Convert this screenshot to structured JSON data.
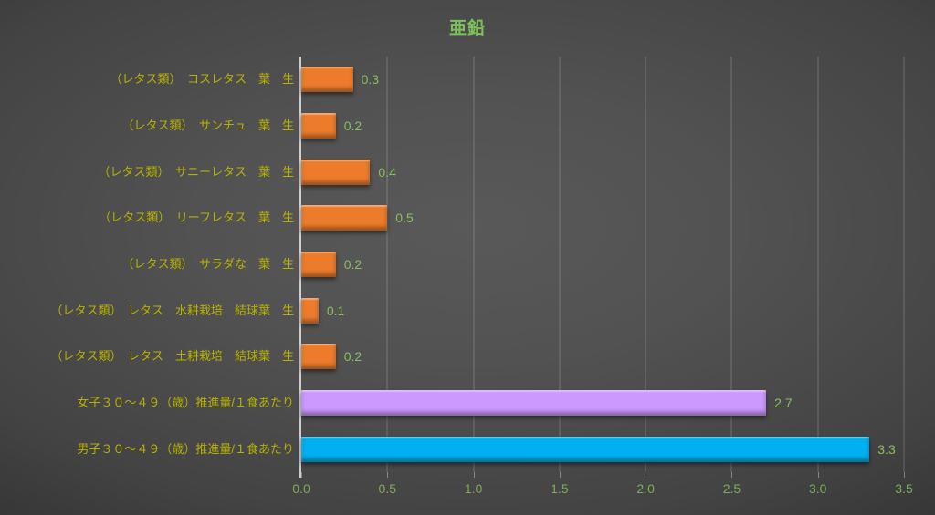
{
  "title": "亜鉛",
  "colors": {
    "title_text": "#7cc15a",
    "category_text": "#b7b200",
    "value_text": "#8cbd60",
    "axis_text": "#79af52",
    "bar_orange": "#ec7c2c",
    "bar_purple": "#cc99ff",
    "bar_cyan": "#00b0f0"
  },
  "chart_data": {
    "type": "bar",
    "orientation": "horizontal",
    "title": "亜鉛",
    "xlabel": "",
    "ylabel": "",
    "xlim": [
      0,
      3.5
    ],
    "x_ticks": [
      "0.0",
      "0.5",
      "1.0",
      "1.5",
      "2.0",
      "2.5",
      "3.0",
      "3.5"
    ],
    "grid": true,
    "legend": false,
    "categories": [
      "（レタス類）　コスレタス　葉　生",
      "（レタス類）　サンチュ　葉　生",
      "（レタス類）　サニーレタス　葉　生",
      "（レタス類）　リーフレタス　葉　生",
      "（レタス類）　サラダな　葉　生",
      "（レタス類）　レタス　水耕栽培　結球葉　生",
      "（レタス類）　レタス　土耕栽培　結球葉　生",
      "女子３０～４９（歳）推進量/１食あたり",
      "男子３０～４９（歳）推進量/１食あたり"
    ],
    "values": [
      0.3,
      0.2,
      0.4,
      0.5,
      0.2,
      0.1,
      0.2,
      2.7,
      3.3
    ],
    "value_labels": [
      "0.3",
      "0.2",
      "0.4",
      "0.5",
      "0.2",
      "0.1",
      "0.2",
      "2.7",
      "3.3"
    ],
    "bar_color_keys": [
      "bar_orange",
      "bar_orange",
      "bar_orange",
      "bar_orange",
      "bar_orange",
      "bar_orange",
      "bar_orange",
      "bar_purple",
      "bar_cyan"
    ]
  }
}
